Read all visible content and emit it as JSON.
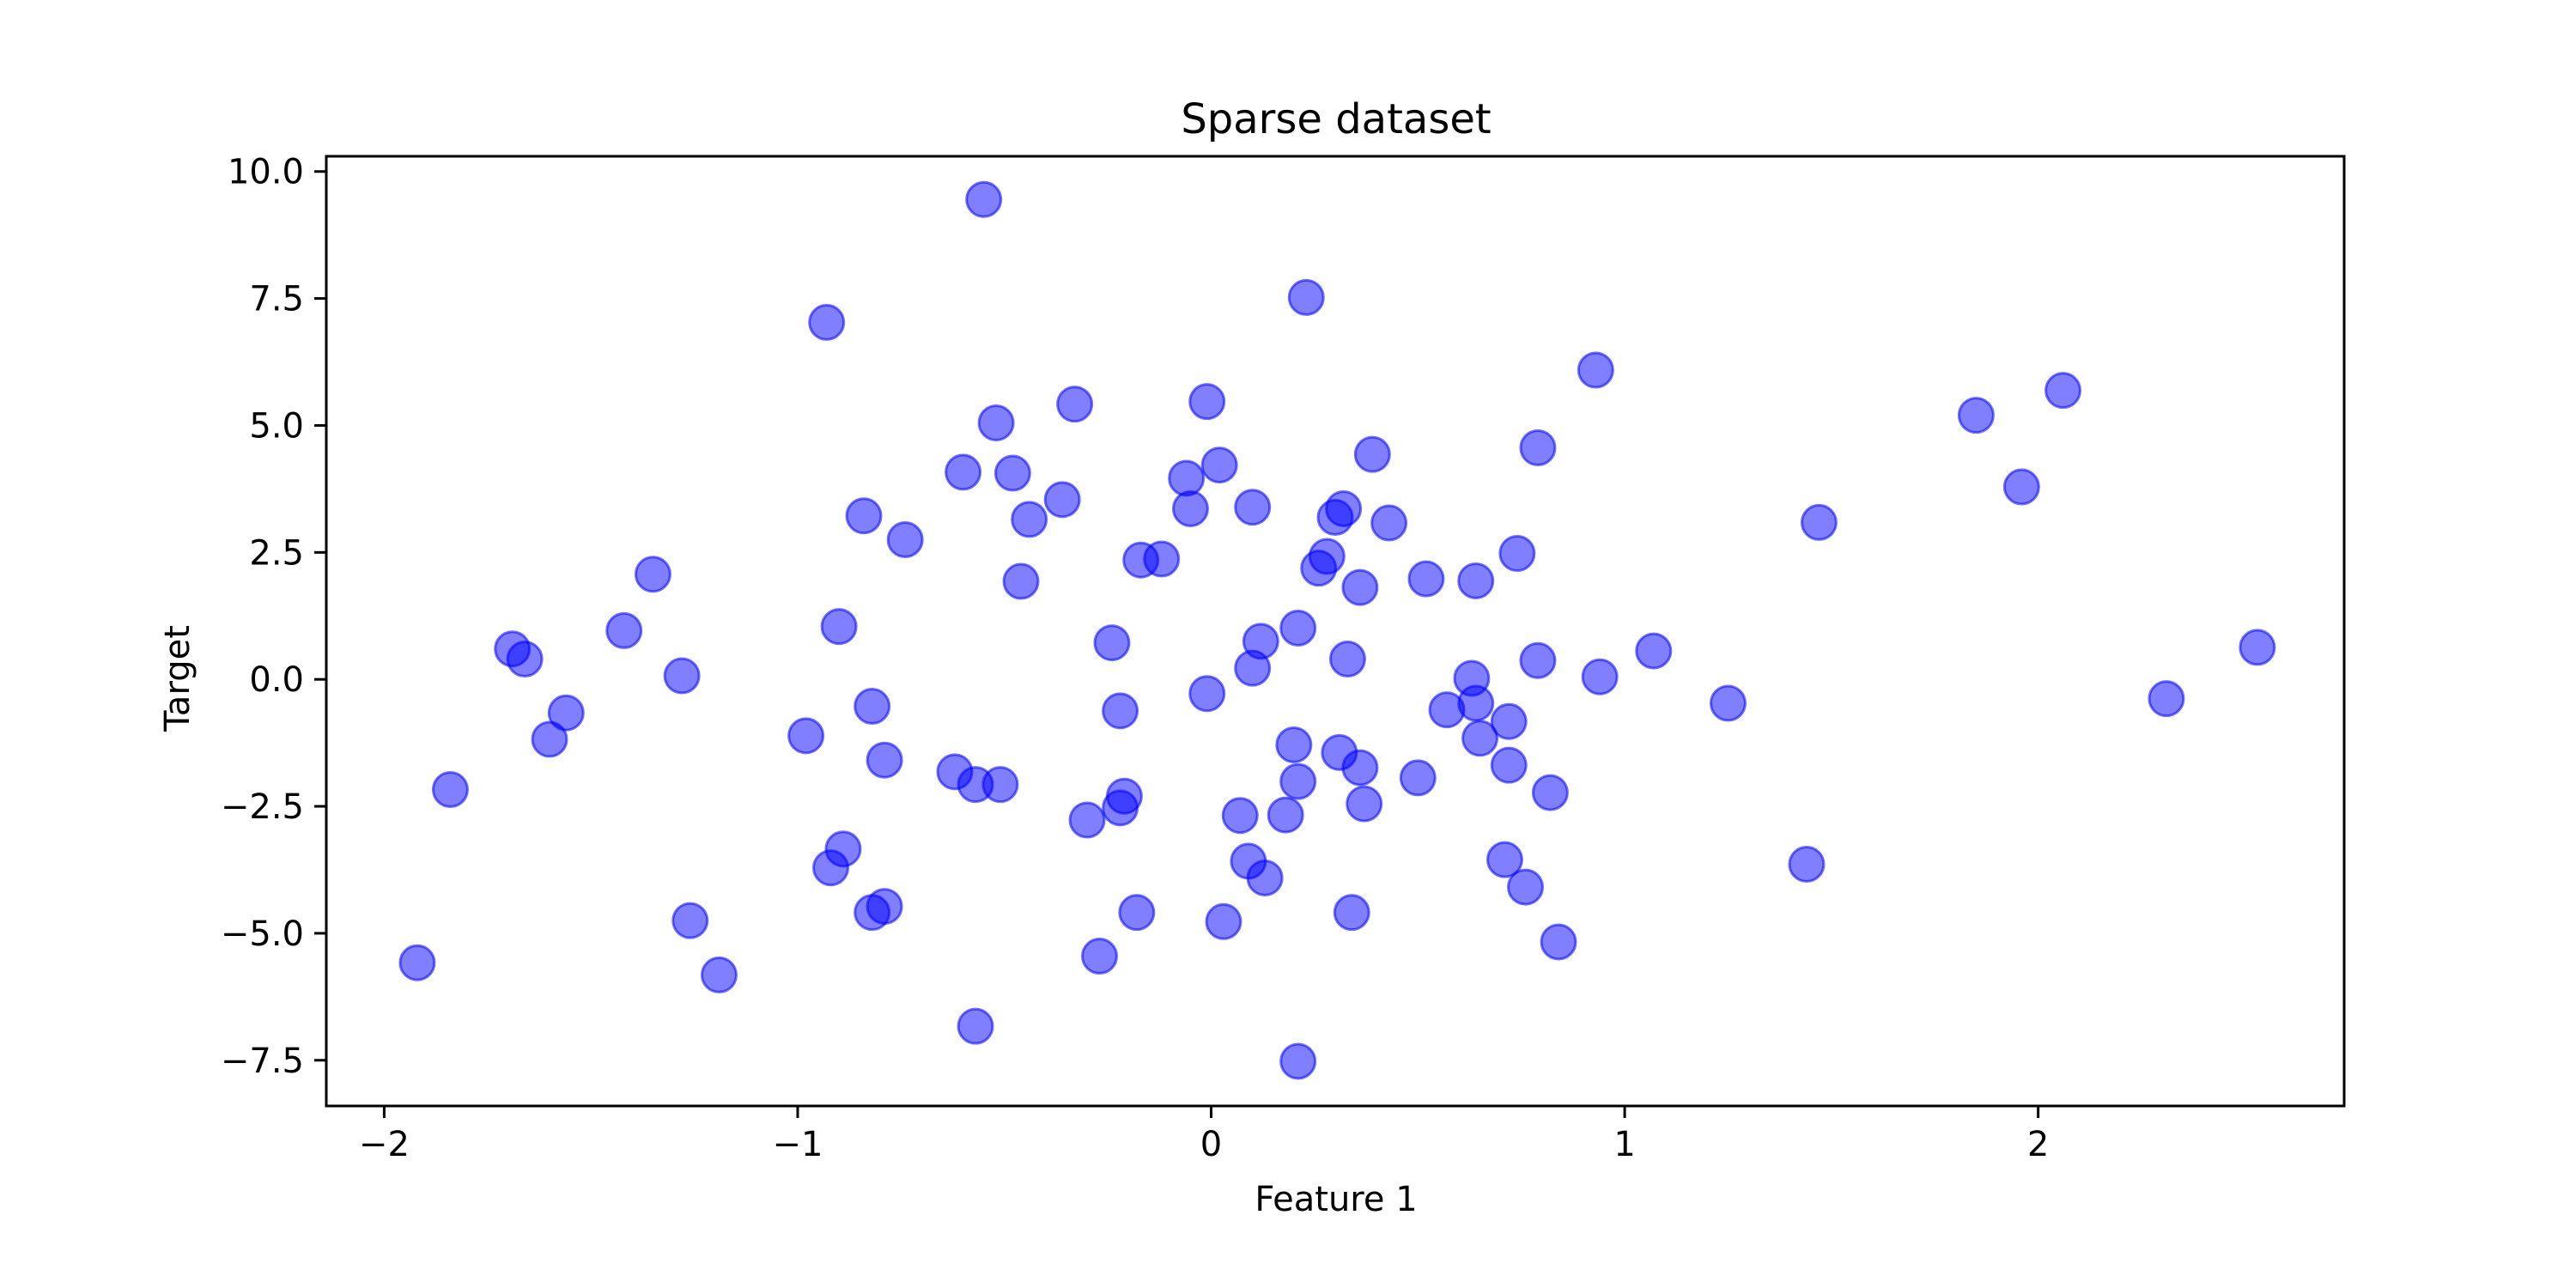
{
  "chart_data": {
    "type": "scatter",
    "title": "Sparse dataset",
    "xlabel": "Feature 1",
    "ylabel": "Target",
    "xlim": [
      -2.14,
      2.74
    ],
    "ylim": [
      -8.4,
      10.3
    ],
    "x_ticks": [
      -2,
      -1,
      0,
      1,
      2
    ],
    "x_tick_labels": [
      "−2",
      "−1",
      "0",
      "1",
      "2"
    ],
    "y_ticks": [
      -7.5,
      -5.0,
      -2.5,
      0.0,
      2.5,
      5.0,
      7.5,
      10.0
    ],
    "y_tick_labels": [
      "−7.5",
      "−5.0",
      "−2.5",
      "0.0",
      "2.5",
      "5.0",
      "7.5",
      "10.0"
    ],
    "grid": false,
    "marker_color": "#0000ff",
    "marker_edge_color": "#0000ff",
    "marker_alpha": 0.5,
    "points": [
      {
        "x": -0.55,
        "y": 9.45
      },
      {
        "x": 0.23,
        "y": 7.52
      },
      {
        "x": -0.93,
        "y": 7.03
      },
      {
        "x": 0.93,
        "y": 6.09
      },
      {
        "x": 2.06,
        "y": 5.69
      },
      {
        "x": -0.52,
        "y": 5.05
      },
      {
        "x": -0.33,
        "y": 5.42
      },
      {
        "x": -0.01,
        "y": 5.47
      },
      {
        "x": 1.85,
        "y": 5.2
      },
      {
        "x": 0.79,
        "y": 4.56
      },
      {
        "x": 0.39,
        "y": 4.43
      },
      {
        "x": 0.02,
        "y": 4.22
      },
      {
        "x": -0.6,
        "y": 4.08
      },
      {
        "x": -0.48,
        "y": 4.06
      },
      {
        "x": -0.06,
        "y": 3.96
      },
      {
        "x": 1.96,
        "y": 3.79
      },
      {
        "x": -0.36,
        "y": 3.54
      },
      {
        "x": 0.1,
        "y": 3.39
      },
      {
        "x": -0.05,
        "y": 3.36
      },
      {
        "x": 0.32,
        "y": 3.36
      },
      {
        "x": -0.84,
        "y": 3.22
      },
      {
        "x": 0.3,
        "y": 3.19
      },
      {
        "x": -0.44,
        "y": 3.15
      },
      {
        "x": 0.43,
        "y": 3.08
      },
      {
        "x": 1.47,
        "y": 3.09
      },
      {
        "x": -0.74,
        "y": 2.75
      },
      {
        "x": 0.74,
        "y": 2.48
      },
      {
        "x": 0.28,
        "y": 2.42
      },
      {
        "x": -0.17,
        "y": 2.35
      },
      {
        "x": -0.12,
        "y": 2.37
      },
      {
        "x": 0.26,
        "y": 2.19
      },
      {
        "x": -1.35,
        "y": 2.07
      },
      {
        "x": 0.52,
        "y": 1.98
      },
      {
        "x": 0.64,
        "y": 1.94
      },
      {
        "x": -0.46,
        "y": 1.93
      },
      {
        "x": 0.36,
        "y": 1.81
      },
      {
        "x": -0.9,
        "y": 1.04
      },
      {
        "x": 0.21,
        "y": 1.01
      },
      {
        "x": -1.42,
        "y": 0.96
      },
      {
        "x": 0.12,
        "y": 0.75
      },
      {
        "x": -0.24,
        "y": 0.72
      },
      {
        "x": 2.53,
        "y": 0.63
      },
      {
        "x": -1.69,
        "y": 0.6
      },
      {
        "x": 1.07,
        "y": 0.56
      },
      {
        "x": -1.66,
        "y": 0.4
      },
      {
        "x": 0.33,
        "y": 0.4
      },
      {
        "x": 0.79,
        "y": 0.37
      },
      {
        "x": 0.1,
        "y": 0.22
      },
      {
        "x": -1.28,
        "y": 0.07
      },
      {
        "x": 0.94,
        "y": 0.05
      },
      {
        "x": 0.63,
        "y": 0.02
      },
      {
        "x": -0.01,
        "y": -0.28
      },
      {
        "x": 2.31,
        "y": -0.38
      },
      {
        "x": 0.64,
        "y": -0.47
      },
      {
        "x": 1.25,
        "y": -0.47
      },
      {
        "x": -0.82,
        "y": -0.53
      },
      {
        "x": 0.57,
        "y": -0.6
      },
      {
        "x": -0.22,
        "y": -0.62
      },
      {
        "x": -1.56,
        "y": -0.66
      },
      {
        "x": 0.72,
        "y": -0.83
      },
      {
        "x": -0.98,
        "y": -1.11
      },
      {
        "x": 0.65,
        "y": -1.16
      },
      {
        "x": -1.6,
        "y": -1.18
      },
      {
        "x": 0.2,
        "y": -1.29
      },
      {
        "x": 0.31,
        "y": -1.44
      },
      {
        "x": -0.79,
        "y": -1.59
      },
      {
        "x": 0.72,
        "y": -1.69
      },
      {
        "x": 0.36,
        "y": -1.74
      },
      {
        "x": -0.62,
        "y": -1.82
      },
      {
        "x": 0.5,
        "y": -1.94
      },
      {
        "x": 0.21,
        "y": -2.01
      },
      {
        "x": -0.57,
        "y": -2.07
      },
      {
        "x": -0.51,
        "y": -2.07
      },
      {
        "x": -1.84,
        "y": -2.17
      },
      {
        "x": 0.82,
        "y": -2.23
      },
      {
        "x": -0.21,
        "y": -2.3
      },
      {
        "x": 0.37,
        "y": -2.45
      },
      {
        "x": -0.22,
        "y": -2.53
      },
      {
        "x": 0.07,
        "y": -2.68
      },
      {
        "x": 0.18,
        "y": -2.67
      },
      {
        "x": -0.3,
        "y": -2.77
      },
      {
        "x": -0.89,
        "y": -3.34
      },
      {
        "x": 0.71,
        "y": -3.55
      },
      {
        "x": 0.09,
        "y": -3.58
      },
      {
        "x": 1.44,
        "y": -3.64
      },
      {
        "x": -0.92,
        "y": -3.71
      },
      {
        "x": 0.13,
        "y": -3.91
      },
      {
        "x": 0.76,
        "y": -4.09
      },
      {
        "x": -0.79,
        "y": -4.47
      },
      {
        "x": -0.82,
        "y": -4.59
      },
      {
        "x": -0.18,
        "y": -4.59
      },
      {
        "x": 0.34,
        "y": -4.59
      },
      {
        "x": -1.26,
        "y": -4.75
      },
      {
        "x": 0.03,
        "y": -4.77
      },
      {
        "x": 0.84,
        "y": -5.17
      },
      {
        "x": -0.27,
        "y": -5.45
      },
      {
        "x": -1.92,
        "y": -5.58
      },
      {
        "x": -1.19,
        "y": -5.82
      },
      {
        "x": -0.57,
        "y": -6.83
      },
      {
        "x": 0.21,
        "y": -7.52
      }
    ]
  }
}
